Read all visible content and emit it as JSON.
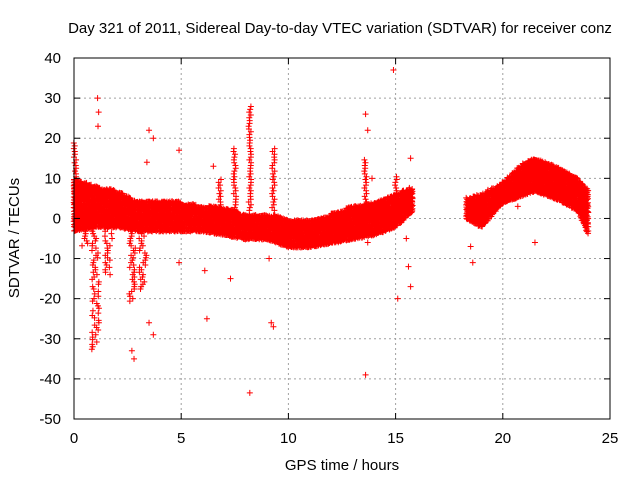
{
  "chart_data": {
    "type": "scatter",
    "title": "Day 321 of 2011, Sidereal Day-to-day VTEC variation (SDTVAR) for receiver conz",
    "xlabel": "GPS time / hours",
    "ylabel": "SDTVAR / TECUs",
    "xlim": [
      0,
      25
    ],
    "ylim": [
      -50,
      40
    ],
    "xticks": [
      0,
      5,
      10,
      15,
      20,
      25
    ],
    "yticks": [
      -50,
      -40,
      -30,
      -20,
      -10,
      0,
      10,
      20,
      30,
      40
    ],
    "grid": true,
    "marker": "+",
    "color": "#ff0000",
    "series": [
      {
        "name": "SDTVAR",
        "band": [
          {
            "x": 0.0,
            "lo": -3,
            "hi": 10
          },
          {
            "x": 1.0,
            "lo": -2,
            "hi": 8
          },
          {
            "x": 2.0,
            "lo": -2,
            "hi": 7
          },
          {
            "x": 3.0,
            "lo": -3,
            "hi": 4
          },
          {
            "x": 4.0,
            "lo": -3,
            "hi": 4
          },
          {
            "x": 5.0,
            "lo": -3,
            "hi": 4
          },
          {
            "x": 6.0,
            "lo": -3,
            "hi": 3
          },
          {
            "x": 7.0,
            "lo": -4,
            "hi": 3
          },
          {
            "x": 8.0,
            "lo": -5,
            "hi": 1
          },
          {
            "x": 9.0,
            "lo": -5,
            "hi": 1
          },
          {
            "x": 10.0,
            "lo": -7,
            "hi": 0
          },
          {
            "x": 11.0,
            "lo": -7,
            "hi": 0
          },
          {
            "x": 12.0,
            "lo": -6,
            "hi": 1
          },
          {
            "x": 13.0,
            "lo": -5,
            "hi": 3
          },
          {
            "x": 14.0,
            "lo": -4,
            "hi": 4
          },
          {
            "x": 15.0,
            "lo": -2,
            "hi": 6
          },
          {
            "x": 15.8,
            "lo": 2,
            "hi": 8
          }
        ],
        "band2": [
          {
            "x": 18.3,
            "lo": 0,
            "hi": 5
          },
          {
            "x": 19.0,
            "lo": -2,
            "hi": 6
          },
          {
            "x": 20.0,
            "lo": 4,
            "hi": 9
          },
          {
            "x": 21.0,
            "lo": 6,
            "hi": 14
          },
          {
            "x": 21.5,
            "lo": 7,
            "hi": 15
          },
          {
            "x": 22.5,
            "lo": 5,
            "hi": 13
          },
          {
            "x": 23.5,
            "lo": 2,
            "hi": 10
          },
          {
            "x": 24.0,
            "lo": -4,
            "hi": 7
          }
        ],
        "dips": [
          {
            "x": 0.5,
            "min": -7
          },
          {
            "x": 1.0,
            "min": -33
          },
          {
            "x": 1.6,
            "min": -14
          },
          {
            "x": 2.7,
            "min": -21
          },
          {
            "x": 3.2,
            "min": -18
          }
        ],
        "spikes": [
          {
            "x": 0.05,
            "top": 19
          },
          {
            "x": 6.8,
            "top": 10
          },
          {
            "x": 7.5,
            "top": 18
          },
          {
            "x": 8.2,
            "top": 28
          },
          {
            "x": 9.3,
            "top": 18
          },
          {
            "x": 13.6,
            "top": 15
          },
          {
            "x": 15.0,
            "top": 11
          }
        ],
        "outliers": [
          {
            "x": 1.1,
            "y": 30
          },
          {
            "x": 1.15,
            "y": 26.5
          },
          {
            "x": 1.12,
            "y": 23
          },
          {
            "x": 3.5,
            "y": 22
          },
          {
            "x": 3.7,
            "y": 20
          },
          {
            "x": 3.4,
            "y": 14
          },
          {
            "x": 4.9,
            "y": 17
          },
          {
            "x": 6.5,
            "y": 13
          },
          {
            "x": 6.1,
            "y": -13
          },
          {
            "x": 6.2,
            "y": -25
          },
          {
            "x": 7.3,
            "y": -15
          },
          {
            "x": 8.2,
            "y": -43.5
          },
          {
            "x": 9.2,
            "y": -26
          },
          {
            "x": 9.3,
            "y": -27
          },
          {
            "x": 9.1,
            "y": -10
          },
          {
            "x": 2.7,
            "y": -33
          },
          {
            "x": 2.8,
            "y": -35
          },
          {
            "x": 3.5,
            "y": -26
          },
          {
            "x": 3.7,
            "y": -29
          },
          {
            "x": 4.9,
            "y": -11
          },
          {
            "x": 13.6,
            "y": 26
          },
          {
            "x": 13.7,
            "y": 22
          },
          {
            "x": 13.9,
            "y": 10
          },
          {
            "x": 13.6,
            "y": -39
          },
          {
            "x": 13.7,
            "y": -6
          },
          {
            "x": 14.9,
            "y": 37
          },
          {
            "x": 15.1,
            "y": -20
          },
          {
            "x": 15.6,
            "y": -12
          },
          {
            "x": 15.7,
            "y": -17
          },
          {
            "x": 15.7,
            "y": 15
          },
          {
            "x": 15.5,
            "y": -5
          },
          {
            "x": 18.5,
            "y": -7
          },
          {
            "x": 18.6,
            "y": -11
          },
          {
            "x": 21.5,
            "y": -6
          },
          {
            "x": 20.7,
            "y": 3
          }
        ]
      }
    ]
  }
}
